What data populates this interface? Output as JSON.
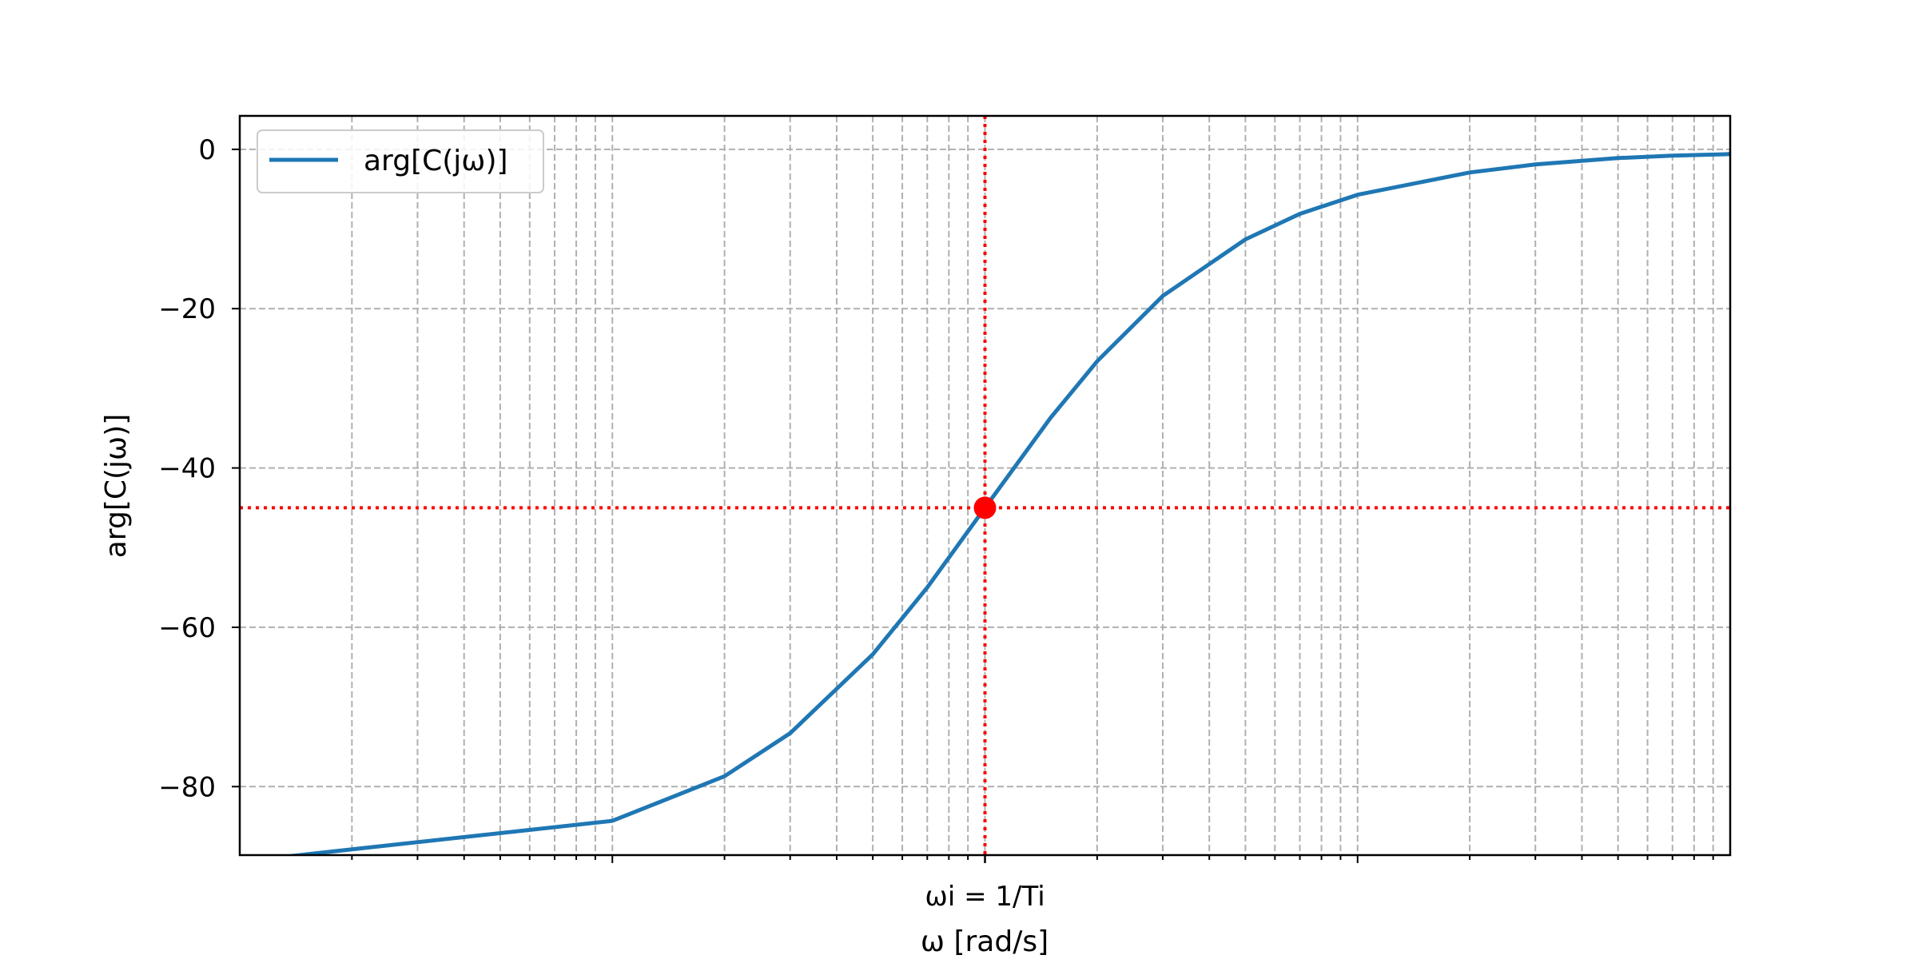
{
  "chart_data": {
    "type": "line",
    "title": "",
    "xlabel": "ω [rad/s]",
    "ylabel": "arg[C(jω)]",
    "x_scale": "log",
    "xlim": [
      0.01,
      100
    ],
    "ylim": [
      -88.6,
      4.2
    ],
    "x_tick_label": "ωi = 1/Ti",
    "x_tick_value": 1,
    "yticks": [
      0,
      -20,
      -40,
      -60,
      -80
    ],
    "grid": true,
    "grid_style": "dashed",
    "legend": {
      "entries": [
        "arg[C(jω)]"
      ],
      "placement": "upper-left"
    },
    "series": [
      {
        "name": "arg[C(jω)]",
        "color": "#1f77b4",
        "x": [
          0.1,
          0.2,
          0.3,
          0.5,
          0.7,
          1,
          1.5,
          2,
          3,
          5,
          7,
          10,
          20,
          30,
          50,
          70,
          100
        ],
        "y": [
          -84.3,
          -78.7,
          -73.3,
          -63.4,
          -55.0,
          -45.0,
          -33.7,
          -26.6,
          -18.4,
          -11.3,
          -8.1,
          -5.7,
          -2.9,
          -1.9,
          -1.1,
          -0.8,
          -0.6
        ]
      }
    ],
    "annotations": {
      "marker": {
        "x": 1,
        "y": -45,
        "color": "#ff0000"
      },
      "vline": {
        "x": 1,
        "color": "#ff0000",
        "style": "dotted"
      },
      "hline": {
        "y": -45,
        "color": "#ff0000",
        "style": "dotted"
      }
    }
  }
}
